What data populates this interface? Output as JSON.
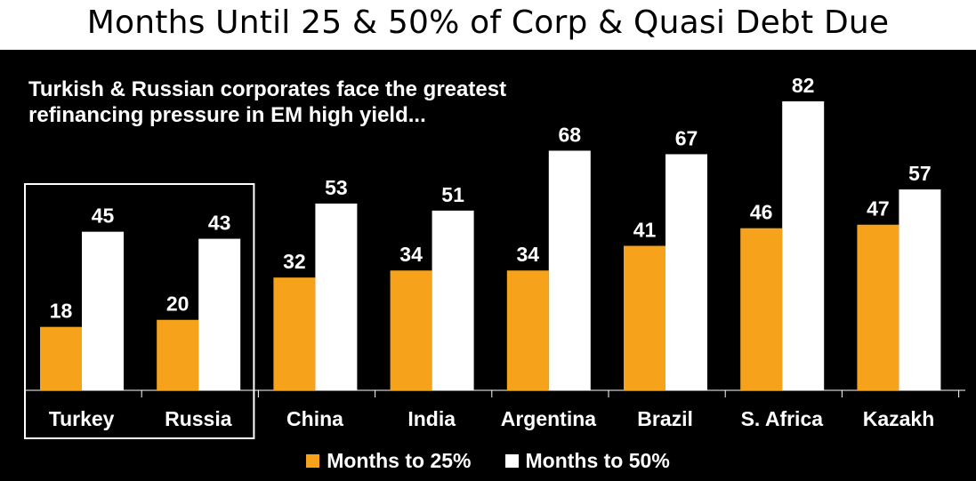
{
  "page": {
    "title": "Months Until 25 & 50% of Corp & Quasi Debt Due"
  },
  "chart_data": {
    "type": "bar",
    "title": "Months Until 25 & 50% of Corp & Quasi Debt Due",
    "annotation": "Turkish & Russian corporates face the greatest refinancing pressure in EM high yield...",
    "categories": [
      "Turkey",
      "Russia",
      "China",
      "India",
      "Argentina",
      "Brazil",
      "S. Africa",
      "Kazakh"
    ],
    "series": [
      {
        "name": "Months to 25%",
        "color": "#f7a21b",
        "values": [
          18,
          20,
          32,
          34,
          34,
          41,
          46,
          47
        ]
      },
      {
        "name": "Months to 50%",
        "color": "#ffffff",
        "values": [
          45,
          43,
          53,
          51,
          68,
          67,
          82,
          57
        ]
      }
    ],
    "highlighted_categories": [
      "Turkey",
      "Russia"
    ],
    "xlabel": "",
    "ylabel": "",
    "ylim": [
      0,
      82
    ],
    "grid": false,
    "legend_position": "bottom",
    "background": "#000000"
  }
}
